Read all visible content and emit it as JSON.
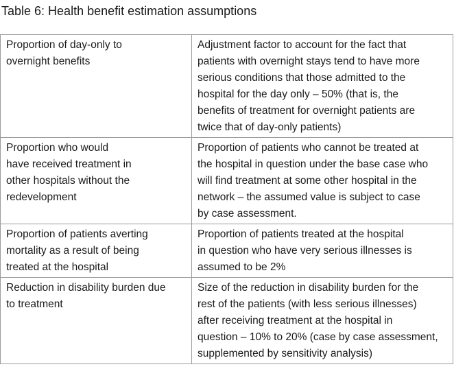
{
  "title": "Table 6: Health benefit estimation assumptions",
  "table": {
    "rows": [
      [
        [
          "Proportion of day-only to",
          "overnight benefits"
        ],
        [
          "Adjustment factor to account for the fact that",
          "patients with overnight stays tend to have more",
          "serious conditions that those admitted to the",
          "hospital for the day only – 50% (that is, the",
          "benefits of treatment for overnight patients are",
          "twice that of day-only patients)"
        ]
      ],
      [
        [
          "Proportion who would",
          "have received treatment in",
          "other hospitals without the",
          "redevelopment"
        ],
        [
          "Proportion of patients who cannot be treated at",
          "the hospital in question under the base case who",
          "will find treatment at some other hospital in the",
          "network – the assumed value is subject to case",
          "by case assessment."
        ]
      ],
      [
        [
          "Proportion of patients averting",
          "mortality as a result of being",
          "treated at the hospital"
        ],
        [
          "Proportion of patients treated at the hospital",
          "in question who have very serious illnesses is",
          "assumed to be 2%"
        ]
      ],
      [
        [
          "Reduction in disability burden due",
          "to treatment"
        ],
        [
          "Size of the reduction in disability burden for the",
          "rest of the patients (with less serious illnesses)",
          "after receiving treatment at the hospital in",
          "question – 10% to 20% (case by case assessment,",
          "supplemented by sensitivity analysis)"
        ]
      ]
    ]
  }
}
